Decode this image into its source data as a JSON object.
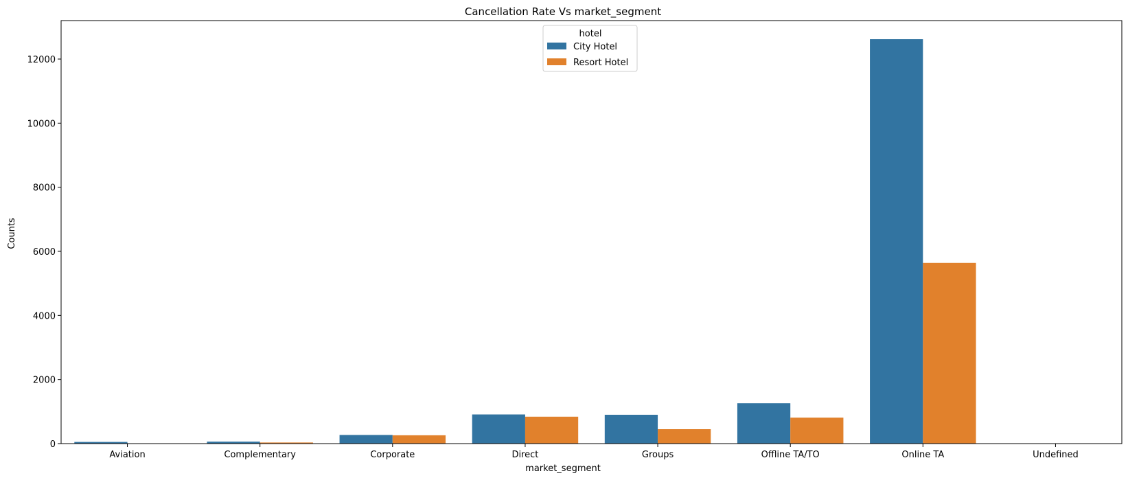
{
  "chart_data": {
    "type": "bar",
    "title": "Cancellation Rate Vs market_segment",
    "xlabel": "market_segment",
    "ylabel": "Counts",
    "categories": [
      "Aviation",
      "Complementary",
      "Corporate",
      "Direct",
      "Groups",
      "Offline TA/TO",
      "Online TA",
      "Undefined"
    ],
    "series": [
      {
        "name": "City Hotel",
        "color": "#3274a1",
        "values": [
          52,
          62,
          270,
          910,
          900,
          1260,
          12620,
          4
        ]
      },
      {
        "name": "Resort Hotel",
        "color": "#e1812c",
        "values": [
          0,
          35,
          260,
          840,
          450,
          810,
          5640,
          0
        ]
      }
    ],
    "ylim": [
      0,
      13200
    ],
    "yticks": [
      0,
      2000,
      4000,
      6000,
      8000,
      10000,
      12000
    ],
    "grid": false,
    "legend": {
      "title": "hotel",
      "position": "top-center"
    }
  }
}
